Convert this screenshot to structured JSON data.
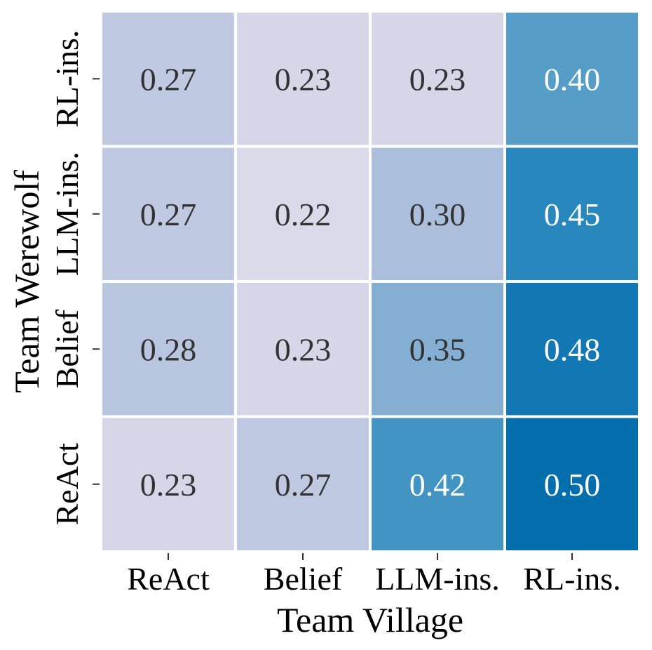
{
  "chart_data": {
    "type": "heatmap",
    "title": "",
    "xlabel": "Team Village",
    "ylabel": "Team Werewolf",
    "x_categories": [
      "ReAct",
      "Belief",
      "LLM-ins.",
      "RL-ins."
    ],
    "y_categories": [
      "RL-ins.",
      "LLM-ins.",
      "Belief",
      "ReAct"
    ],
    "values": [
      [
        0.27,
        0.23,
        0.23,
        0.4
      ],
      [
        0.27,
        0.22,
        0.3,
        0.45
      ],
      [
        0.28,
        0.23,
        0.35,
        0.48
      ],
      [
        0.23,
        0.27,
        0.42,
        0.5
      ]
    ],
    "value_format": "0.00",
    "colormap": "PuBu",
    "colorbar": false,
    "grid": false,
    "colors": {
      "dark_text": "#333333",
      "light_text": "#ffffff",
      "cell_border": "#ffffff",
      "axis": "#333333"
    }
  }
}
